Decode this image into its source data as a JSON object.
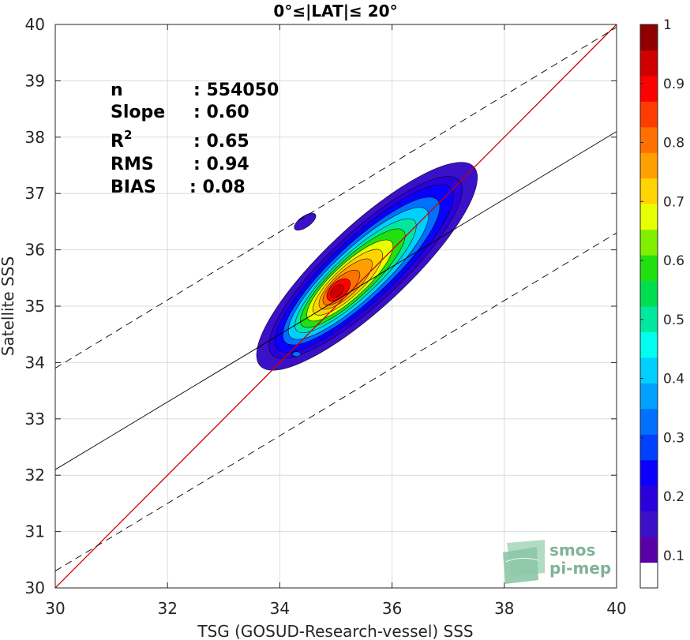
{
  "chart_data": {
    "type": "heatmap",
    "title": "0°≤|LAT|≤ 20°",
    "xlabel": "TSG (GOSUD-Research-vessel) SSS",
    "ylabel": "Satellite SSS",
    "xlim": [
      30,
      40
    ],
    "ylim": [
      30,
      40
    ],
    "xticks": [
      30,
      32,
      34,
      36,
      38,
      40
    ],
    "yticks": [
      30,
      31,
      32,
      33,
      34,
      35,
      36,
      37,
      38,
      39,
      40
    ],
    "grid": true,
    "colorbar": {
      "ticks": [
        0.1,
        0.2,
        0.3,
        0.4,
        0.5,
        0.6,
        0.7,
        0.8,
        0.9,
        1
      ],
      "tick_labels": [
        "0.1",
        "0.2",
        "0.3",
        "0.4",
        "0.5",
        "0.6",
        "0.7",
        "0.8",
        "0.9",
        "1"
      ],
      "levels": 21,
      "colors": [
        "#ffffff",
        "#5a00a8",
        "#3a10c8",
        "#2a00dd",
        "#0a00ff",
        "#0040ff",
        "#0070ff",
        "#00a0ff",
        "#00d0ff",
        "#00ffee",
        "#00e8a0",
        "#00dd50",
        "#20e010",
        "#80f000",
        "#e8ff00",
        "#ffd400",
        "#ffa000",
        "#ff7000",
        "#ff3c00",
        "#ff0000",
        "#d00000",
        "#900000"
      ]
    },
    "lines": [
      {
        "name": "1:1",
        "color": "#cc0000",
        "style": "solid",
        "points": [
          [
            30,
            30
          ],
          [
            40,
            40
          ]
        ]
      },
      {
        "name": "fit",
        "color": "#000000",
        "style": "solid",
        "points": [
          [
            30,
            32.1
          ],
          [
            40,
            38.1
          ]
        ]
      },
      {
        "name": "upper",
        "color": "#000000",
        "style": "dashed",
        "points": [
          [
            30,
            33.9
          ],
          [
            40,
            39.95
          ]
        ]
      },
      {
        "name": "lower",
        "color": "#000000",
        "style": "dashed",
        "points": [
          [
            30,
            30.3
          ],
          [
            40,
            36.3
          ]
        ]
      }
    ],
    "density_center": [
      35.3,
      35.4
    ],
    "stats": {
      "n": {
        "label": "n",
        "value": ": 554050"
      },
      "slope": {
        "label": "Slope",
        "value": ": 0.60"
      },
      "r2": {
        "label": "R",
        "sup": "2",
        "value": ": 0.65"
      },
      "rms": {
        "label": "RMS",
        "value": ": 0.94"
      },
      "bias": {
        "label": "BIAS",
        "value": ": 0.08"
      }
    }
  },
  "logo": {
    "line1": "smos",
    "line2": "pi-mep"
  }
}
